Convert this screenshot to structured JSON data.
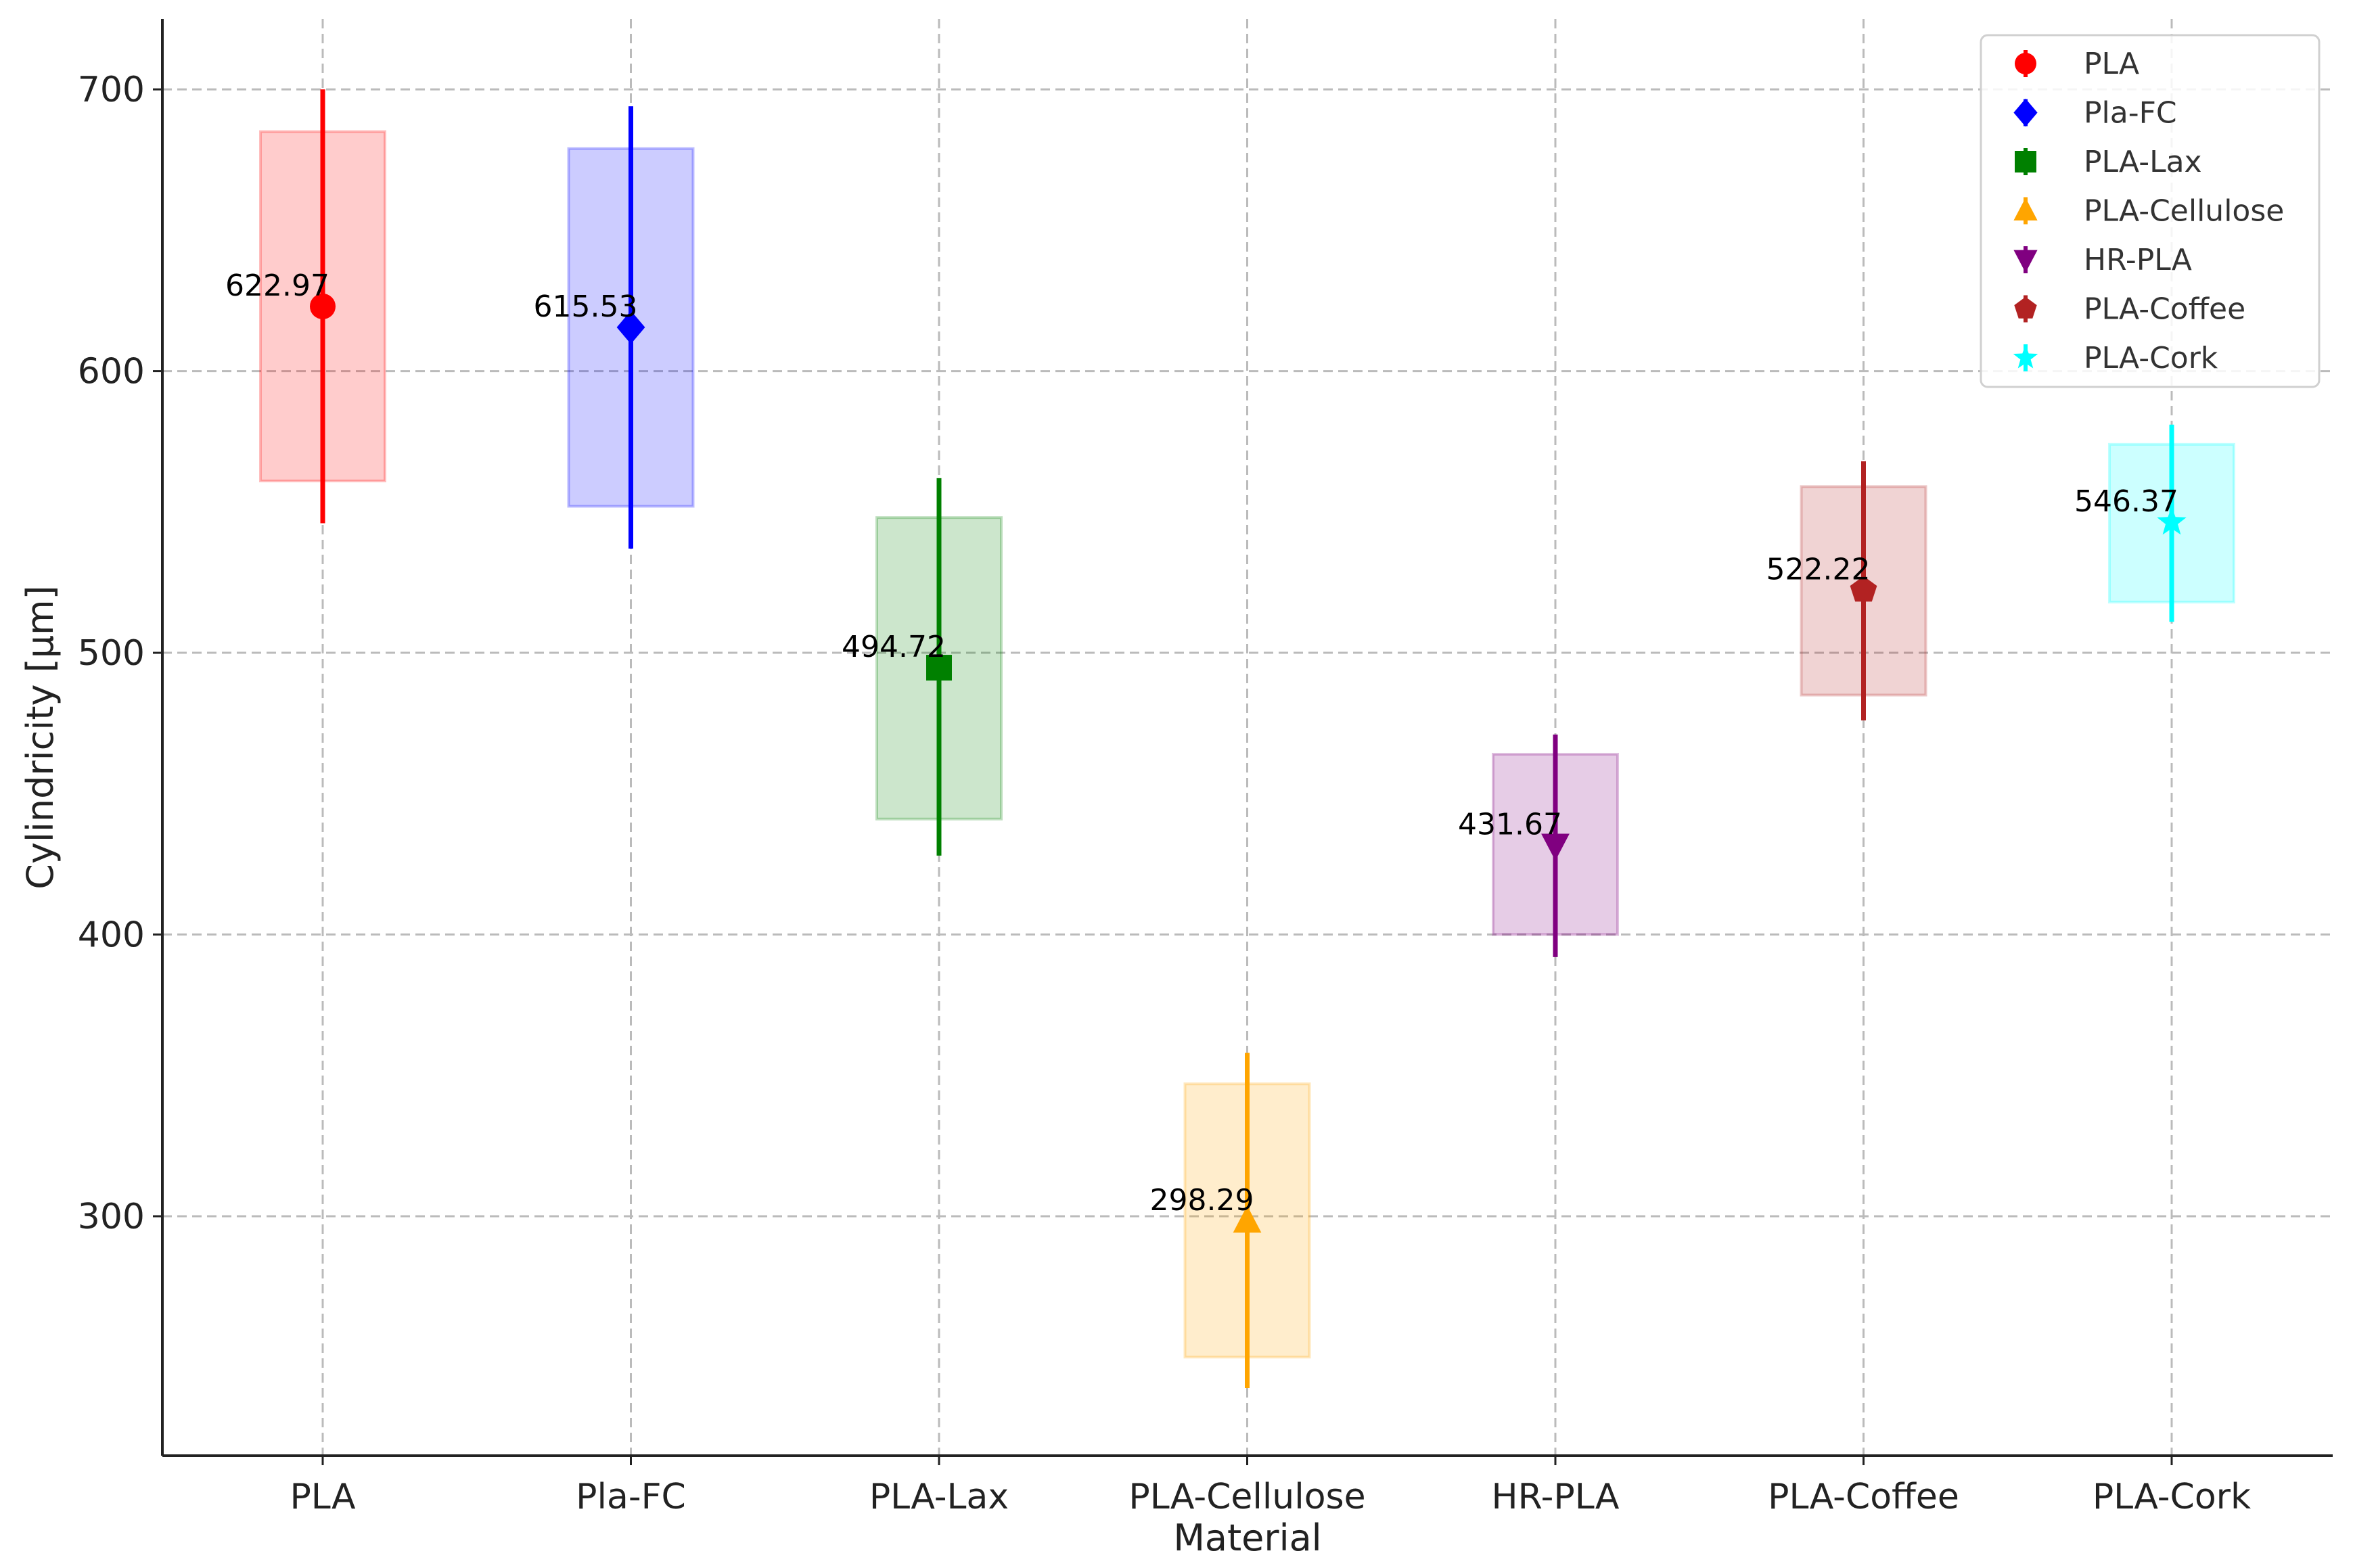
{
  "chart_data": {
    "type": "scatter",
    "title": "",
    "xlabel": "Material",
    "ylabel": "Cylindricity [µm]",
    "ylim": [
      215,
      725
    ],
    "yticks": [
      300,
      400,
      500,
      600,
      700
    ],
    "grid": true,
    "legend_position": "top-right",
    "categories": [
      "PLA",
      "Pla-FC",
      "PLA-Lax",
      "PLA-Cellulose",
      "HR-PLA",
      "PLA-Coffee",
      "PLA-Cork"
    ],
    "series": [
      {
        "name": "PLA",
        "label": "622.97",
        "mean": 622.97,
        "box": [
          561,
          685
        ],
        "err": [
          546,
          700
        ],
        "color": "#ff0000",
        "marker": "circle"
      },
      {
        "name": "Pla-FC",
        "label": "615.53",
        "mean": 615.53,
        "box": [
          552,
          679
        ],
        "err": [
          537,
          694
        ],
        "color": "#0000ff",
        "marker": "diamond"
      },
      {
        "name": "PLA-Lax",
        "label": "494.72",
        "mean": 494.72,
        "box": [
          441,
          548
        ],
        "err": [
          428,
          562
        ],
        "color": "#008000",
        "marker": "square"
      },
      {
        "name": "PLA-Cellulose",
        "label": "298.29",
        "mean": 298.29,
        "box": [
          250,
          347
        ],
        "err": [
          239,
          358
        ],
        "color": "#ffa500",
        "marker": "triangle-up"
      },
      {
        "name": "HR-PLA",
        "label": "431.67",
        "mean": 431.67,
        "box": [
          400,
          464
        ],
        "err": [
          392,
          471
        ],
        "color": "#800080",
        "marker": "triangle-down"
      },
      {
        "name": "PLA-Coffee",
        "label": "522.22",
        "mean": 522.22,
        "box": [
          485,
          559
        ],
        "err": [
          476,
          568
        ],
        "color": "#b22222",
        "marker": "pentagon"
      },
      {
        "name": "PLA-Cork",
        "label": "546.37",
        "mean": 546.37,
        "box": [
          518,
          574
        ],
        "err": [
          511,
          581
        ],
        "color": "#00ffff",
        "marker": "star"
      }
    ]
  }
}
